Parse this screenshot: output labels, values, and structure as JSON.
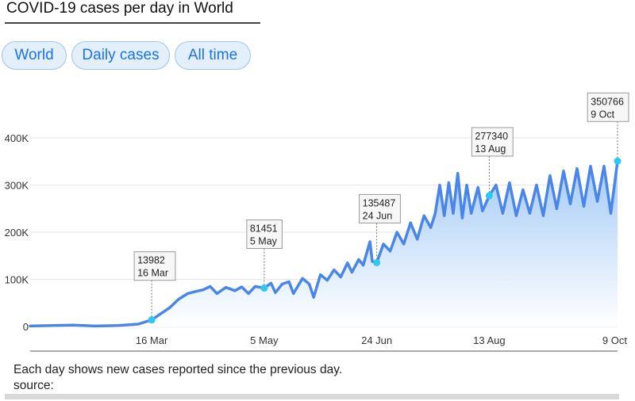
{
  "title": "COVID-19 cases per day in World",
  "filters": {
    "region": "World",
    "metric": "Daily cases",
    "range": "All time"
  },
  "footer": {
    "note": "Each day shows new cases reported since the previous day.",
    "source_label": "source:"
  },
  "colors": {
    "line": "#4a86e8",
    "fill_top": "#9cc6f5",
    "marker": "#2ec8f0",
    "grid": "#e6e6e6"
  },
  "chart_data": {
    "type": "area",
    "title": "COVID-19 cases per day in World",
    "xlabel": "",
    "ylabel": "",
    "x_range": [
      "2020-01-22",
      "2020-10-09"
    ],
    "ylim": [
      0,
      400000
    ],
    "grid": true,
    "y_ticks": [
      {
        "value": 0,
        "label": "0"
      },
      {
        "value": 100000,
        "label": "100K"
      },
      {
        "value": 200000,
        "label": "200K"
      },
      {
        "value": 300000,
        "label": "300K"
      },
      {
        "value": 400000,
        "label": "400K"
      }
    ],
    "x_ticks": [
      {
        "date": "2020-03-16",
        "label": "16 Mar"
      },
      {
        "date": "2020-05-05",
        "label": "5 May"
      },
      {
        "date": "2020-06-24",
        "label": "24 Jun"
      },
      {
        "date": "2020-08-13",
        "label": "13 Aug"
      },
      {
        "date": "2020-10-09",
        "label": "9 Oct"
      }
    ],
    "annotations": [
      {
        "date": "2020-03-16",
        "value": 13982,
        "value_label": "13982",
        "date_label": "16 Mar"
      },
      {
        "date": "2020-05-05",
        "value": 81451,
        "value_label": "81451",
        "date_label": "5 May"
      },
      {
        "date": "2020-06-24",
        "value": 135487,
        "value_label": "135487",
        "date_label": "24 Jun"
      },
      {
        "date": "2020-08-13",
        "value": 277340,
        "value_label": "277340",
        "date_label": "13 Aug"
      },
      {
        "date": "2020-10-09",
        "value": 350766,
        "value_label": "350766",
        "date_label": "9 Oct"
      }
    ],
    "series": [
      {
        "points": [
          [
            "2020-01-22",
            1000
          ],
          [
            "2020-02-01",
            2000
          ],
          [
            "2020-02-10",
            3000
          ],
          [
            "2020-02-20",
            1000
          ],
          [
            "2020-03-01",
            2000
          ],
          [
            "2020-03-10",
            5000
          ],
          [
            "2020-03-16",
            13982
          ],
          [
            "2020-03-20",
            27000
          ],
          [
            "2020-03-24",
            40000
          ],
          [
            "2020-03-28",
            58000
          ],
          [
            "2020-04-01",
            70000
          ],
          [
            "2020-04-05",
            75000
          ],
          [
            "2020-04-08",
            78000
          ],
          [
            "2020-04-11",
            85000
          ],
          [
            "2020-04-14",
            70000
          ],
          [
            "2020-04-18",
            83000
          ],
          [
            "2020-04-22",
            76000
          ],
          [
            "2020-04-25",
            84000
          ],
          [
            "2020-04-28",
            70000
          ],
          [
            "2020-05-01",
            85000
          ],
          [
            "2020-05-05",
            81451
          ],
          [
            "2020-05-08",
            92000
          ],
          [
            "2020-05-10",
            72000
          ],
          [
            "2020-05-13",
            90000
          ],
          [
            "2020-05-16",
            95000
          ],
          [
            "2020-05-18",
            70000
          ],
          [
            "2020-05-22",
            102000
          ],
          [
            "2020-05-25",
            90000
          ],
          [
            "2020-05-27",
            62000
          ],
          [
            "2020-05-30",
            110000
          ],
          [
            "2020-06-02",
            98000
          ],
          [
            "2020-06-05",
            120000
          ],
          [
            "2020-06-08",
            105000
          ],
          [
            "2020-06-11",
            135000
          ],
          [
            "2020-06-13",
            115000
          ],
          [
            "2020-06-16",
            142000
          ],
          [
            "2020-06-18",
            130000
          ],
          [
            "2020-06-21",
            180000
          ],
          [
            "2020-06-22",
            138000
          ],
          [
            "2020-06-24",
            135487
          ],
          [
            "2020-06-27",
            175000
          ],
          [
            "2020-06-30",
            160000
          ],
          [
            "2020-07-03",
            200000
          ],
          [
            "2020-07-06",
            175000
          ],
          [
            "2020-07-09",
            220000
          ],
          [
            "2020-07-12",
            185000
          ],
          [
            "2020-07-15",
            235000
          ],
          [
            "2020-07-18",
            210000
          ],
          [
            "2020-07-20",
            240000
          ],
          [
            "2020-07-22",
            300000
          ],
          [
            "2020-07-24",
            235000
          ],
          [
            "2020-07-26",
            305000
          ],
          [
            "2020-07-28",
            240000
          ],
          [
            "2020-07-30",
            325000
          ],
          [
            "2020-08-01",
            230000
          ],
          [
            "2020-08-03",
            300000
          ],
          [
            "2020-08-05",
            240000
          ],
          [
            "2020-08-08",
            295000
          ],
          [
            "2020-08-10",
            245000
          ],
          [
            "2020-08-13",
            277340
          ],
          [
            "2020-08-16",
            300000
          ],
          [
            "2020-08-19",
            240000
          ],
          [
            "2020-08-22",
            305000
          ],
          [
            "2020-08-25",
            235000
          ],
          [
            "2020-08-28",
            290000
          ],
          [
            "2020-08-31",
            240000
          ],
          [
            "2020-09-03",
            300000
          ],
          [
            "2020-09-06",
            235000
          ],
          [
            "2020-09-09",
            320000
          ],
          [
            "2020-09-12",
            250000
          ],
          [
            "2020-09-15",
            330000
          ],
          [
            "2020-09-18",
            260000
          ],
          [
            "2020-09-21",
            335000
          ],
          [
            "2020-09-24",
            255000
          ],
          [
            "2020-09-27",
            340000
          ],
          [
            "2020-09-30",
            265000
          ],
          [
            "2020-10-03",
            340000
          ],
          [
            "2020-10-06",
            240000
          ],
          [
            "2020-10-09",
            350766
          ]
        ]
      }
    ]
  }
}
